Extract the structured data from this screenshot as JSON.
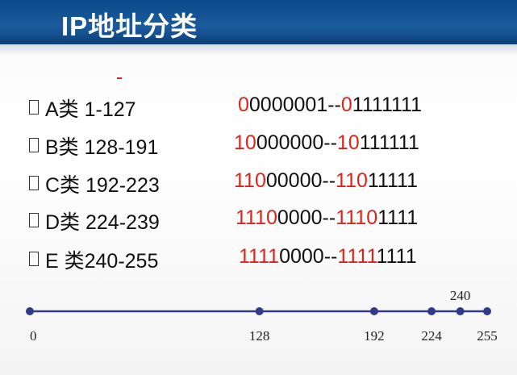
{
  "header": {
    "title": "IP地址分类"
  },
  "rows": [
    {
      "label": "A类 1-127",
      "start_red": "0",
      "start_rest": "0000001",
      "sep": "--",
      "end_red": "0",
      "end_rest": "1111111"
    },
    {
      "label": "B类 128-191",
      "start_red": "10",
      "start_rest": "000000",
      "sep": "--",
      "end_red": "10",
      "end_rest": "111111"
    },
    {
      "label": "C类 192-223",
      "start_red": "110",
      "start_rest": "00000",
      "sep": "--",
      "end_red": "110",
      "end_rest": "11111"
    },
    {
      "label": "D类 224-239",
      "start_red": "1110",
      "start_rest": "0000",
      "sep": "--",
      "end_red": "1110",
      "end_rest": "1111"
    },
    {
      "label": "E 类240-255",
      "start_red": "1111",
      "start_rest": "0000",
      "sep": "--",
      "end_red": "1111",
      "end_rest": "1111"
    }
  ],
  "number_line": {
    "points": [
      0,
      128,
      192,
      224,
      240,
      255
    ]
  }
}
